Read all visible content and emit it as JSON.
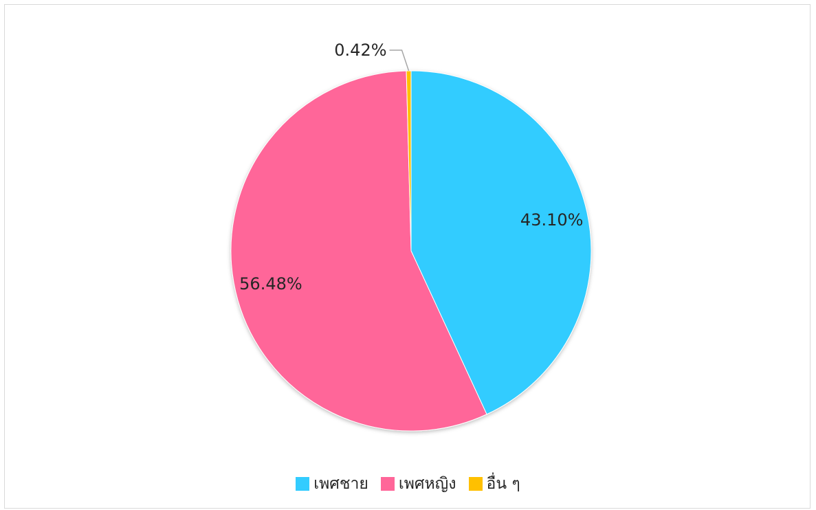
{
  "chart_data": {
    "type": "pie",
    "title": "",
    "legend_position": "bottom",
    "slices": [
      {
        "name": "เพศชาย",
        "value": 43.1,
        "label": "43.10%",
        "color": "#33CCFF"
      },
      {
        "name": "เพศหญิง",
        "value": 56.48,
        "label": "56.48%",
        "color": "#FF6699"
      },
      {
        "name": "อื่น ๆ",
        "value": 0.42,
        "label": "0.42%",
        "color": "#FFC000"
      }
    ]
  }
}
